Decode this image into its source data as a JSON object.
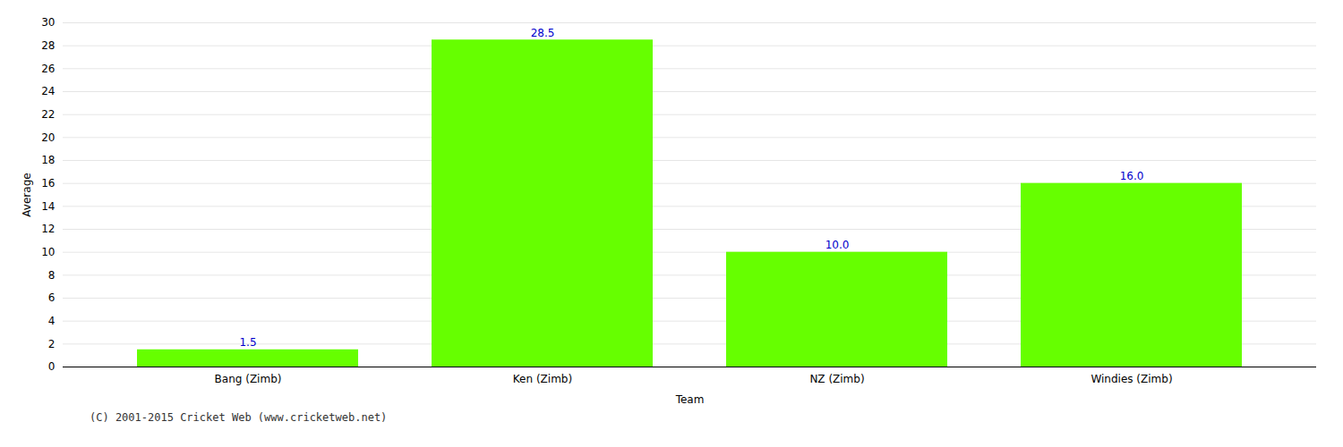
{
  "chart_data": {
    "type": "bar",
    "categories": [
      "Bang (Zimb)",
      "Ken (Zimb)",
      "NZ (Zimb)",
      "Windies (Zimb)"
    ],
    "values": [
      1.5,
      28.5,
      10.0,
      16.0
    ],
    "value_labels": [
      "1.5",
      "28.5",
      "10.0",
      "16.0"
    ],
    "data_labels": true,
    "color": "#66ff00",
    "xlabel": "Team",
    "ylabel": "Average",
    "ylim": [
      0,
      30
    ],
    "yticks": [
      0,
      2,
      4,
      6,
      8,
      10,
      12,
      14,
      16,
      18,
      20,
      22,
      24,
      26,
      28,
      30
    ],
    "grid": true,
    "caption": "(C) 2001-2015 Cricket Web (www.cricketweb.net)"
  }
}
